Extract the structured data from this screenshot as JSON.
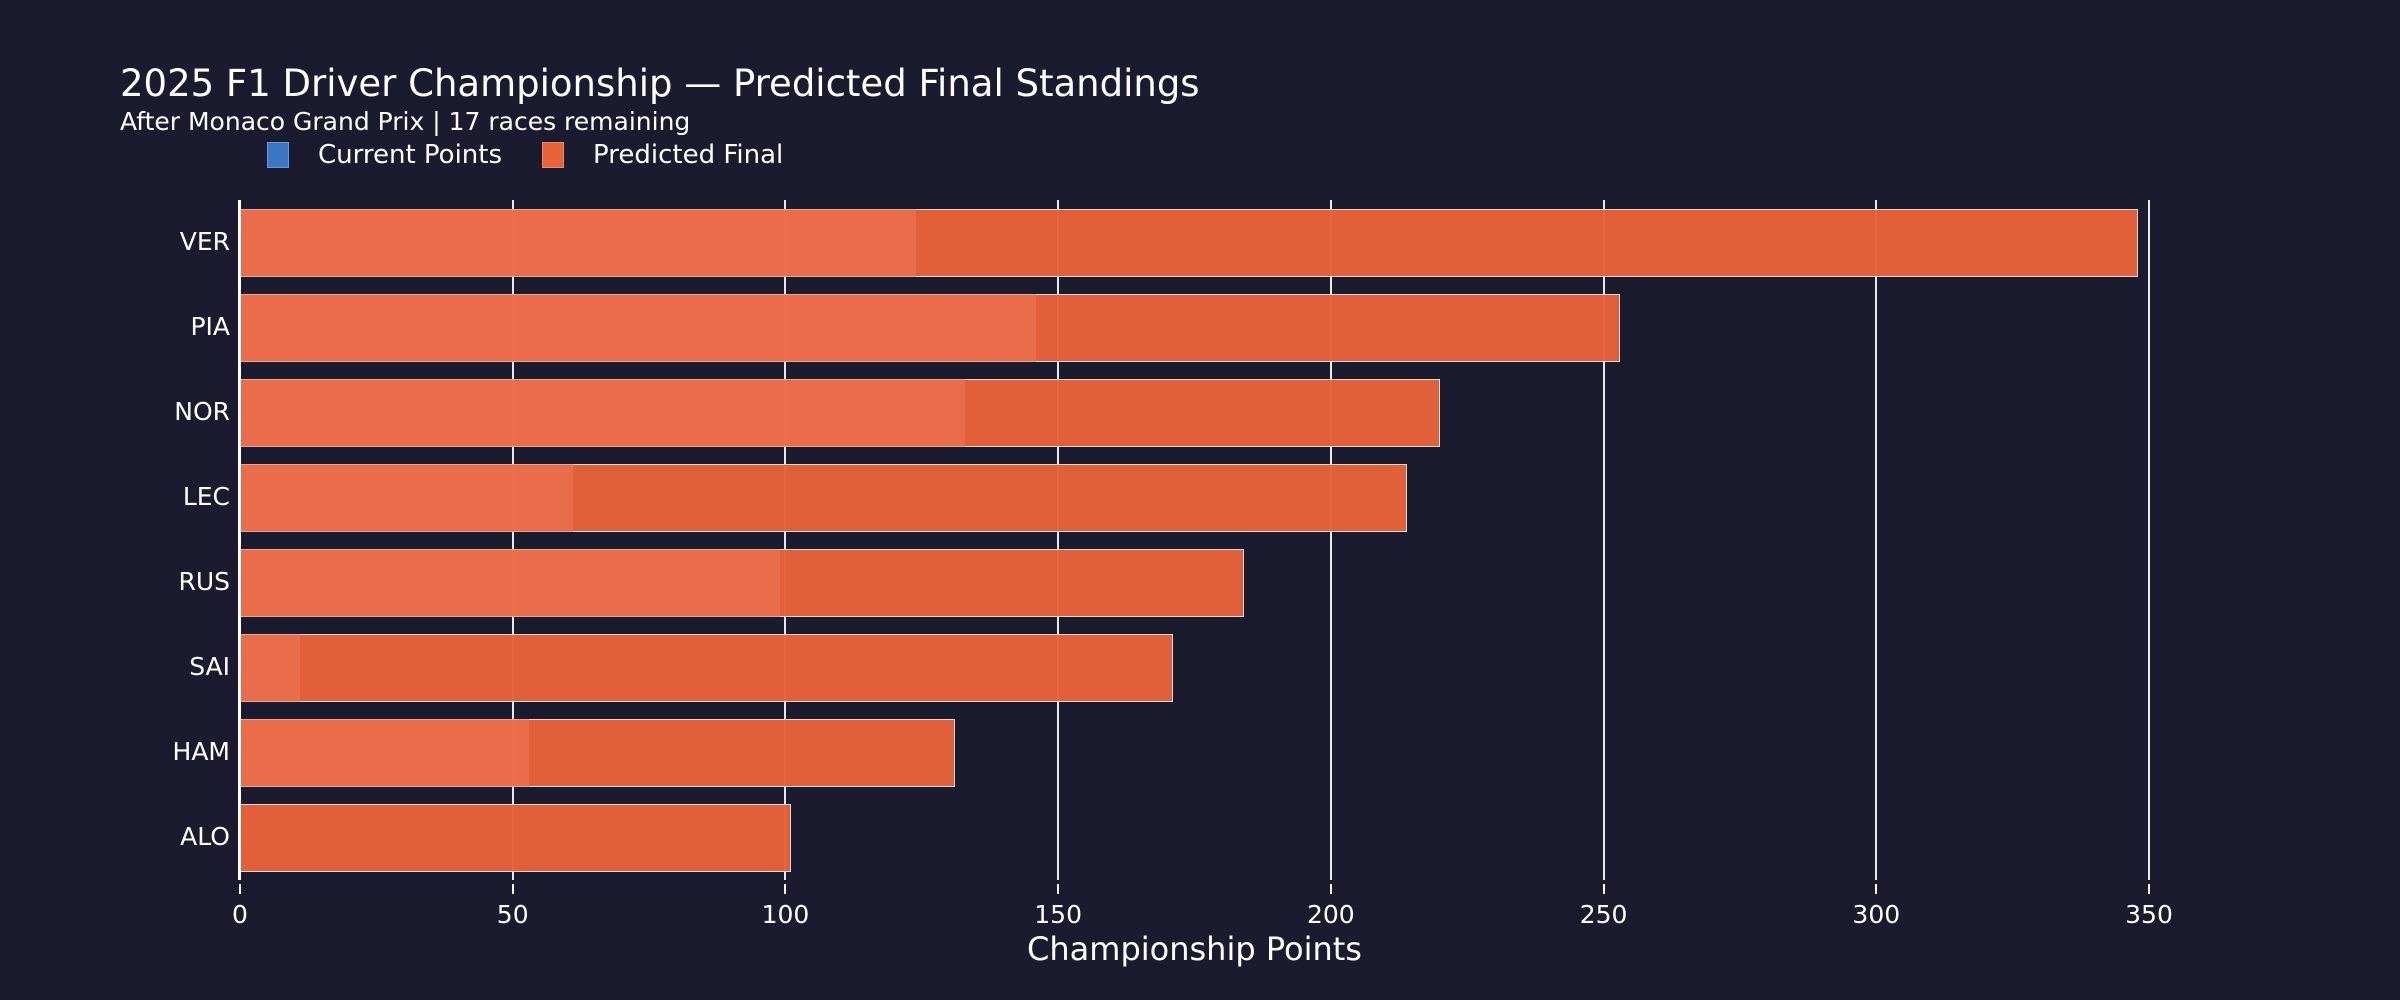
{
  "header": {
    "title": "2025 F1 Driver Championship — Predicted Final Standings",
    "subtitle": "After Monaco Grand Prix | 17 races remaining"
  },
  "legend": [
    {
      "label": "Current Points",
      "color": "#3a76c4"
    },
    {
      "label": "Predicted Final",
      "color": "#e8623a"
    }
  ],
  "axis": {
    "xlabel": "Championship Points",
    "xticks": [
      "0",
      "50",
      "100",
      "150",
      "200",
      "250",
      "300",
      "350"
    ]
  },
  "colors": {
    "background": "#1b1b2f",
    "current": "#3a76c4",
    "predicted": "#e8623a"
  },
  "chart_data": {
    "type": "bar",
    "orientation": "horizontal",
    "title": "2025 F1 Driver Championship — Predicted Final Standings",
    "subtitle": "After Monaco Grand Prix | 17 races remaining",
    "categories": [
      "VER",
      "PIA",
      "NOR",
      "LEC",
      "RUS",
      "SAI",
      "HAM",
      "ALO"
    ],
    "series": [
      {
        "name": "Current Points",
        "values": [
          124,
          146,
          133,
          61,
          99,
          11,
          53,
          0
        ]
      },
      {
        "name": "Predicted Final",
        "values": [
          348,
          253,
          220,
          214,
          184,
          171,
          131,
          101
        ]
      }
    ],
    "xlabel": "Championship Points",
    "ylabel": "",
    "xlim": [
      0,
      350
    ],
    "grid": true,
    "legend_position": "top-left",
    "barmode": "overlay"
  }
}
